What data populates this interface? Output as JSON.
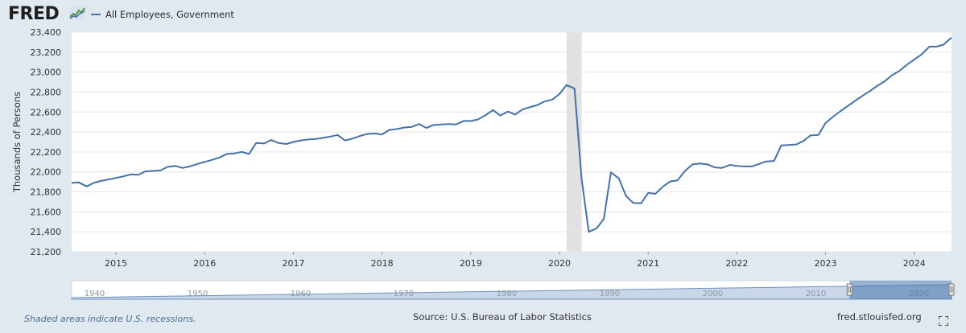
{
  "header": {
    "logo_text": "FRED",
    "series_label": "All Employees, Government",
    "series_color": "#4572a7"
  },
  "chart_data": {
    "type": "line",
    "title": "",
    "xlabel": "",
    "ylabel": "Thousands of Persons",
    "ylim": [
      21200,
      23400
    ],
    "yticks": [
      21200,
      21400,
      21600,
      21800,
      22000,
      22200,
      22400,
      22600,
      22800,
      23000,
      23200,
      23400
    ],
    "xlim": [
      2014.5,
      2024.42
    ],
    "xticks": [
      "2015",
      "2016",
      "2017",
      "2018",
      "2019",
      "2020",
      "2021",
      "2022",
      "2023",
      "2024"
    ],
    "grid": true,
    "recessions": [
      [
        2020.08,
        2020.25
      ]
    ],
    "series": [
      {
        "name": "All Employees, Government",
        "color": "#4572a7",
        "x": [
          2014.5,
          2014.58,
          2014.67,
          2014.75,
          2014.83,
          2014.92,
          2015.0,
          2015.08,
          2015.17,
          2015.25,
          2015.33,
          2015.42,
          2015.5,
          2015.58,
          2015.67,
          2015.75,
          2015.83,
          2015.92,
          2016.0,
          2016.08,
          2016.17,
          2016.25,
          2016.33,
          2016.42,
          2016.5,
          2016.58,
          2016.67,
          2016.75,
          2016.83,
          2016.92,
          2017.0,
          2017.08,
          2017.17,
          2017.25,
          2017.33,
          2017.42,
          2017.5,
          2017.58,
          2017.67,
          2017.75,
          2017.83,
          2017.92,
          2018.0,
          2018.08,
          2018.17,
          2018.25,
          2018.33,
          2018.42,
          2018.5,
          2018.58,
          2018.67,
          2018.75,
          2018.83,
          2018.92,
          2019.0,
          2019.08,
          2019.17,
          2019.25,
          2019.33,
          2019.42,
          2019.5,
          2019.58,
          2019.67,
          2019.75,
          2019.83,
          2019.92,
          2020.0,
          2020.08,
          2020.17,
          2020.25,
          2020.33,
          2020.42,
          2020.5,
          2020.58,
          2020.67,
          2020.75,
          2020.83,
          2020.92,
          2021.0,
          2021.08,
          2021.17,
          2021.25,
          2021.33,
          2021.42,
          2021.5,
          2021.58,
          2021.67,
          2021.75,
          2021.83,
          2021.92,
          2022.0,
          2022.08,
          2022.17,
          2022.25,
          2022.33,
          2022.42,
          2022.5,
          2022.58,
          2022.67,
          2022.75,
          2022.83,
          2022.92,
          2023.0,
          2023.08,
          2023.17,
          2023.25,
          2023.33,
          2023.42,
          2023.5,
          2023.58,
          2023.67,
          2023.75,
          2023.83,
          2023.92,
          2024.0,
          2024.08,
          2024.17,
          2024.25,
          2024.33,
          2024.42
        ],
        "values": [
          21890,
          21895,
          21855,
          21890,
          21910,
          21925,
          21940,
          21955,
          21975,
          21970,
          22005,
          22010,
          22015,
          22050,
          22060,
          22040,
          22055,
          22080,
          22100,
          22120,
          22145,
          22180,
          22185,
          22200,
          22180,
          22290,
          22285,
          22320,
          22290,
          22280,
          22300,
          22315,
          22325,
          22330,
          22340,
          22355,
          22370,
          22315,
          22335,
          22360,
          22380,
          22385,
          22375,
          22420,
          22430,
          22445,
          22450,
          22480,
          22440,
          22470,
          22475,
          22480,
          22475,
          22510,
          22510,
          22525,
          22570,
          22620,
          22565,
          22605,
          22575,
          22625,
          22650,
          22670,
          22705,
          22725,
          22780,
          22870,
          22835,
          21930,
          21400,
          21435,
          21530,
          21995,
          21935,
          21760,
          21690,
          21685,
          21790,
          21780,
          21855,
          21905,
          21915,
          22015,
          22075,
          22085,
          22075,
          22045,
          22040,
          22070,
          22060,
          22055,
          22055,
          22080,
          22105,
          22110,
          22265,
          22270,
          22275,
          22310,
          22365,
          22370,
          22490,
          22550,
          22610,
          22660,
          22710,
          22765,
          22810,
          22860,
          22910,
          22970,
          23010,
          23075,
          23125,
          23175,
          23255,
          23255,
          23275,
          23345
        ]
      }
    ]
  },
  "navigator": {
    "labels": [
      "1940",
      "1950",
      "1960",
      "1970",
      "1980",
      "1990",
      "2000",
      "2010",
      "2020"
    ],
    "range": [
      1939,
      2024.4
    ],
    "selected": [
      2014.5,
      2024.4
    ]
  },
  "footer": {
    "recession_note": "Shaded areas indicate U.S. recessions.",
    "source": "Source: U.S. Bureau of Labor Statistics",
    "site": "fred.stlouisfed.org"
  }
}
